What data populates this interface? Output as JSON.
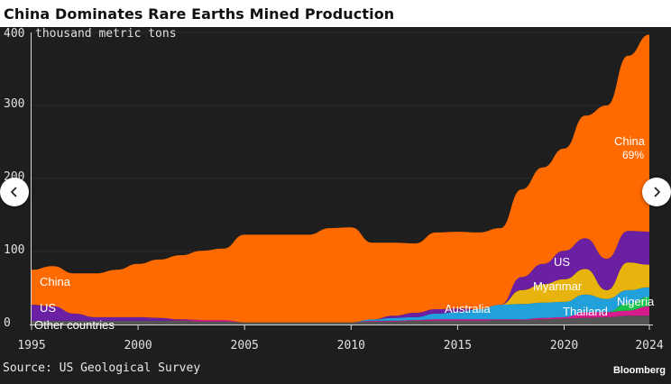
{
  "title": "China Dominates Rare Earths Mined Production",
  "source": "Source: US Geological Survey",
  "brand": "Bloomberg",
  "colors": {
    "background": "#1e1e1e",
    "china": "#ff6a00",
    "us": "#6b1fa3",
    "australia": "#22a0dc",
    "myanmar": "#e8b30c",
    "thailand": "#d81b8c",
    "nigeria": "#19c24a",
    "other": "#555555"
  },
  "chart_data": {
    "type": "area",
    "title": "China Dominates Rare Earths Mined Production",
    "ylabel": "thousand metric tons",
    "ylim": [
      0,
      400
    ],
    "xlim": [
      1995,
      2024
    ],
    "y_ticks": [
      "400",
      "300",
      "200",
      "100",
      "0"
    ],
    "y_tick_values": [
      400,
      300,
      200,
      100,
      0
    ],
    "y_unit_label": "thousand metric tons",
    "x_ticks": [
      "1995",
      "2000",
      "2005",
      "2010",
      "2015",
      "2020",
      "2024"
    ],
    "x_tick_values": [
      1995,
      2000,
      2005,
      2010,
      2015,
      2020,
      2024
    ],
    "x": [
      1995,
      1996,
      1997,
      1998,
      1999,
      2000,
      2001,
      2002,
      2003,
      2004,
      2005,
      2006,
      2007,
      2008,
      2009,
      2010,
      2011,
      2012,
      2013,
      2014,
      2015,
      2016,
      2017,
      2018,
      2019,
      2020,
      2021,
      2022,
      2023,
      2024
    ],
    "series": [
      {
        "name": "Other countries",
        "values": [
          5,
          5,
          5,
          5,
          5,
          5,
          5,
          5,
          4,
          4,
          3,
          3,
          3,
          3,
          3,
          3,
          4,
          4,
          5,
          5,
          5,
          5,
          6,
          6,
          7,
          8,
          9,
          10,
          12,
          12
        ]
      },
      {
        "name": "Thailand",
        "values": [
          0,
          0,
          0,
          0,
          0,
          0,
          0,
          1,
          2,
          2,
          0,
          0,
          0,
          0,
          0,
          0,
          1,
          1,
          1,
          2,
          2,
          2,
          1,
          1,
          2,
          2,
          8,
          7,
          7,
          13
        ]
      },
      {
        "name": "Nigeria",
        "values": [
          0,
          0,
          0,
          0,
          0,
          0,
          0,
          0,
          0,
          0,
          0,
          0,
          0,
          0,
          0,
          0,
          0,
          0,
          0,
          0,
          0,
          0,
          0,
          0,
          0,
          0,
          0,
          0,
          10,
          13
        ]
      },
      {
        "name": "Australia",
        "values": [
          0,
          0,
          0,
          0,
          0,
          0,
          0,
          0,
          0,
          0,
          0,
          0,
          0,
          0,
          0,
          0,
          2,
          4,
          4,
          8,
          10,
          14,
          20,
          21,
          21,
          21,
          24,
          18,
          18,
          13
        ]
      },
      {
        "name": "Myanmar",
        "values": [
          0,
          0,
          0,
          0,
          0,
          0,
          0,
          0,
          0,
          0,
          0,
          0,
          0,
          0,
          0,
          0,
          0,
          0,
          0,
          0,
          0,
          0,
          0,
          19,
          25,
          31,
          35,
          12,
          38,
          31
        ]
      },
      {
        "name": "US",
        "values": [
          22,
          20,
          10,
          5,
          5,
          5,
          4,
          1,
          0,
          0,
          0,
          0,
          0,
          0,
          0,
          0,
          0,
          3,
          6,
          6,
          5,
          0,
          0,
          18,
          28,
          39,
          42,
          43,
          43,
          45
        ]
      },
      {
        "name": "China",
        "values": [
          48,
          55,
          55,
          60,
          65,
          73,
          80,
          88,
          95,
          98,
          120,
          120,
          120,
          120,
          129,
          130,
          105,
          100,
          95,
          105,
          105,
          105,
          105,
          120,
          132,
          140,
          168,
          210,
          240,
          270
        ]
      }
    ],
    "labels": {
      "china_left": "China",
      "china_right": "China",
      "china_share": "69%",
      "us_left": "US",
      "us_right": "US",
      "australia": "Australia",
      "myanmar": "Myanmar",
      "thailand": "Thailand",
      "nigeria": "Nigeria",
      "other": "Other countries"
    }
  }
}
